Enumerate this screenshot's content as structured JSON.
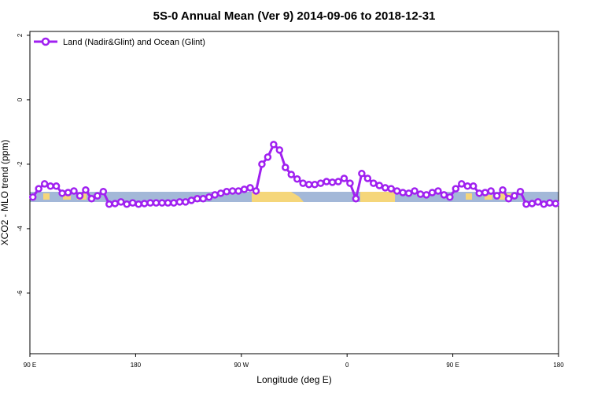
{
  "chart_data": {
    "type": "line",
    "title": "5S-0 Annual Mean (Ver 9)   2014-09-06 to 2018-12-31",
    "x_label": "Longitude (deg E)",
    "y_label": "XCO2 - MLO trend (ppm)",
    "legend_position": "top-left",
    "x": [
      92.5,
      97.5,
      102.5,
      107.5,
      112.5,
      117.5,
      122.5,
      127.5,
      132.5,
      137.5,
      142.5,
      147.5,
      152.5,
      157.5,
      162.5,
      167.5,
      172.5,
      177.5,
      182.5,
      187.5,
      192.5,
      197.5,
      202.5,
      207.5,
      212.5,
      217.5,
      222.5,
      227.5,
      232.5,
      237.5,
      242.5,
      247.5,
      252.5,
      257.5,
      262.5,
      267.5,
      272.5,
      277.5,
      282.5,
      287.5,
      292.5,
      297.5,
      302.5,
      307.5,
      312.5,
      317.5,
      322.5,
      327.5,
      332.5,
      337.5,
      342.5,
      347.5,
      352.5,
      357.5,
      362.5,
      367.5,
      372.5,
      377.5,
      382.5,
      387.5,
      392.5,
      397.5,
      402.5,
      407.5,
      412.5,
      417.5,
      422.5,
      427.5,
      432.5,
      437.5,
      442.5,
      447.5,
      452.5,
      457.5,
      462.5,
      467.5,
      472.5,
      477.5,
      482.5,
      487.5,
      492.5,
      497.5,
      502.5,
      507.5,
      512.5,
      517.5,
      522.5,
      527.5,
      532.5,
      537.5
    ],
    "series": [
      {
        "name": "Land (Nadir&Glint) and Ocean (Glint)",
        "color": "#a020f0",
        "values": [
          -3.02,
          -2.76,
          -2.61,
          -2.68,
          -2.68,
          -2.9,
          -2.88,
          -2.83,
          -2.98,
          -2.8,
          -3.07,
          -2.98,
          -2.85,
          -3.24,
          -3.22,
          -3.17,
          -3.24,
          -3.2,
          -3.24,
          -3.22,
          -3.2,
          -3.2,
          -3.2,
          -3.2,
          -3.2,
          -3.17,
          -3.17,
          -3.12,
          -3.07,
          -3.07,
          -3.02,
          -2.95,
          -2.9,
          -2.85,
          -2.83,
          -2.83,
          -2.78,
          -2.73,
          -2.83,
          -2.0,
          -1.78,
          -1.39,
          -1.56,
          -2.1,
          -2.32,
          -2.46,
          -2.59,
          -2.63,
          -2.63,
          -2.59,
          -2.54,
          -2.56,
          -2.54,
          -2.44,
          -2.59,
          -3.07,
          -2.29,
          -2.44,
          -2.59,
          -2.66,
          -2.73,
          -2.76,
          -2.83,
          -2.88,
          -2.9,
          -2.83,
          -2.93,
          -2.95,
          -2.88,
          -2.83,
          -2.95,
          -3.02,
          -2.76,
          -2.61,
          -2.68,
          -2.68,
          -2.9,
          -2.88,
          -2.83,
          -2.98,
          -2.8,
          -3.07,
          -2.98,
          -2.85,
          -3.24,
          -3.22,
          -3.17,
          -3.24,
          -3.2,
          -3.22
        ]
      }
    ],
    "xlim": [
      90,
      540
    ],
    "xticks": [
      {
        "value": 90,
        "label": "90 E"
      },
      {
        "value": 180,
        "label": "180"
      },
      {
        "value": 270,
        "label": "90 W"
      },
      {
        "value": 360,
        "label": "0"
      },
      {
        "value": 450,
        "label": "90 E"
      },
      {
        "value": 540,
        "label": "180"
      }
    ],
    "ylim": [
      -7.88,
      2.12
    ],
    "yticks": [
      -6,
      -4,
      -2,
      0,
      2
    ]
  }
}
